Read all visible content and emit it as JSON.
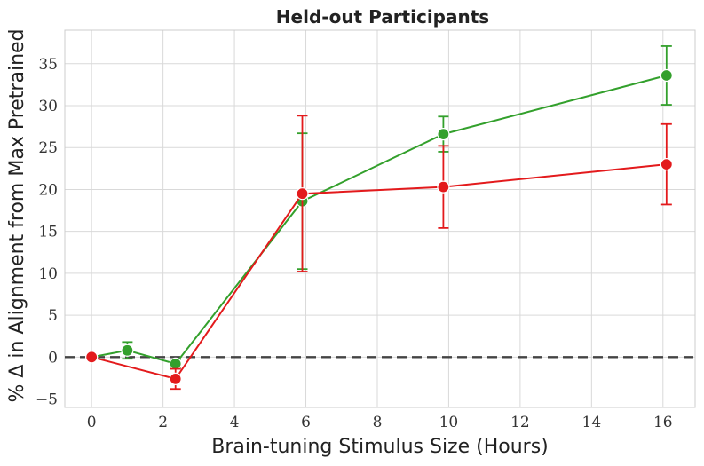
{
  "chart_data": {
    "type": "line",
    "title": "Held-out Participants",
    "xlabel": "Brain-tuning Stimulus Size (Hours)",
    "ylabel": "% Δ in Alignment from Max Pretrained",
    "xlim": [
      -0.75,
      16.9
    ],
    "ylim": [
      -6,
      39
    ],
    "xticks": [
      0,
      2,
      4,
      6,
      8,
      10,
      12,
      14,
      16
    ],
    "yticks": [
      -5,
      0,
      5,
      10,
      15,
      20,
      25,
      30,
      35
    ],
    "grid": true,
    "legend": "none",
    "reference_line": {
      "y": 0,
      "style": "dashed",
      "color": "#444444"
    },
    "series": [
      {
        "color": "#33a02c",
        "x": [
          0,
          1,
          2.35,
          5.9,
          9.85,
          16.1
        ],
        "y": [
          0,
          0.8,
          -0.8,
          18.6,
          26.6,
          33.6
        ],
        "err": [
          0,
          1.0,
          0.5,
          8.1,
          2.1,
          3.5
        ]
      },
      {
        "color": "#e31a1c",
        "x": [
          0,
          2.35,
          5.9,
          9.85,
          16.1
        ],
        "y": [
          0,
          -2.6,
          19.5,
          20.3,
          23.0
        ],
        "err": [
          0,
          1.2,
          9.3,
          4.9,
          4.8
        ]
      }
    ]
  }
}
